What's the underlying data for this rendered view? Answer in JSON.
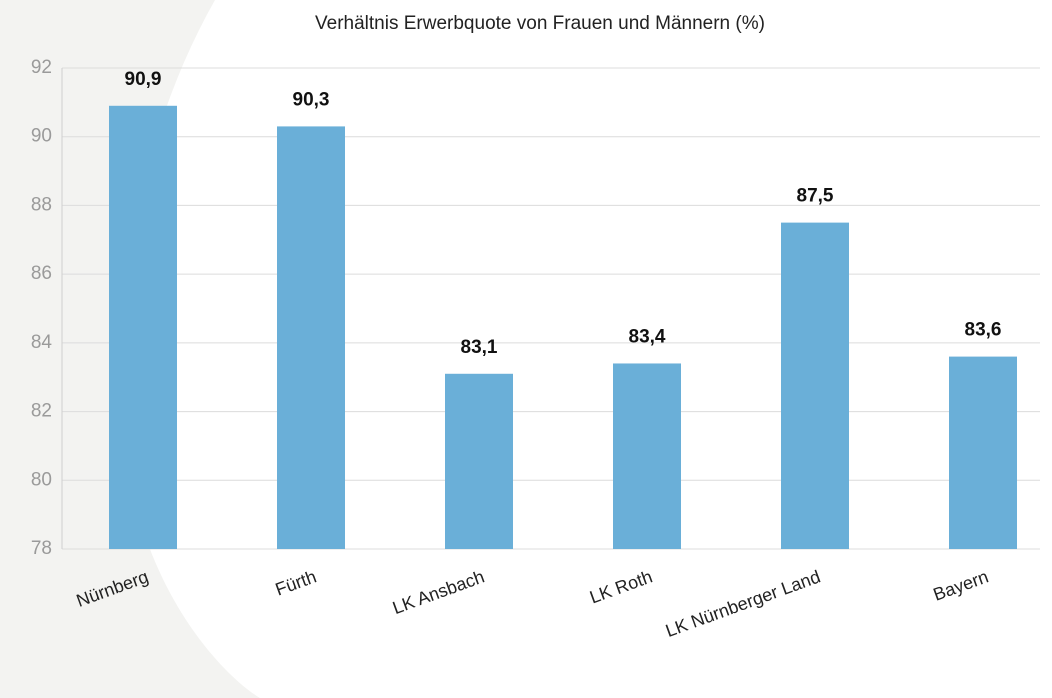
{
  "chart_data": {
    "type": "bar",
    "title": "Verhältnis Erwerbquote von Frauen und Männern (%)",
    "categories": [
      "Nürnberg",
      "Fürth",
      "LK Ansbach",
      "LK Roth",
      "LK Nürnberger Land",
      "Bayern"
    ],
    "values": [
      90.9,
      90.3,
      83.1,
      83.4,
      87.5,
      83.6
    ],
    "value_labels": [
      "90,9",
      "90,3",
      "83,1",
      "83,4",
      "87,5",
      "83,6"
    ],
    "color": "#6aafd8",
    "ylim": [
      78,
      92
    ],
    "yticks": [
      78,
      80,
      82,
      84,
      86,
      88,
      90,
      92
    ],
    "grid": true
  }
}
